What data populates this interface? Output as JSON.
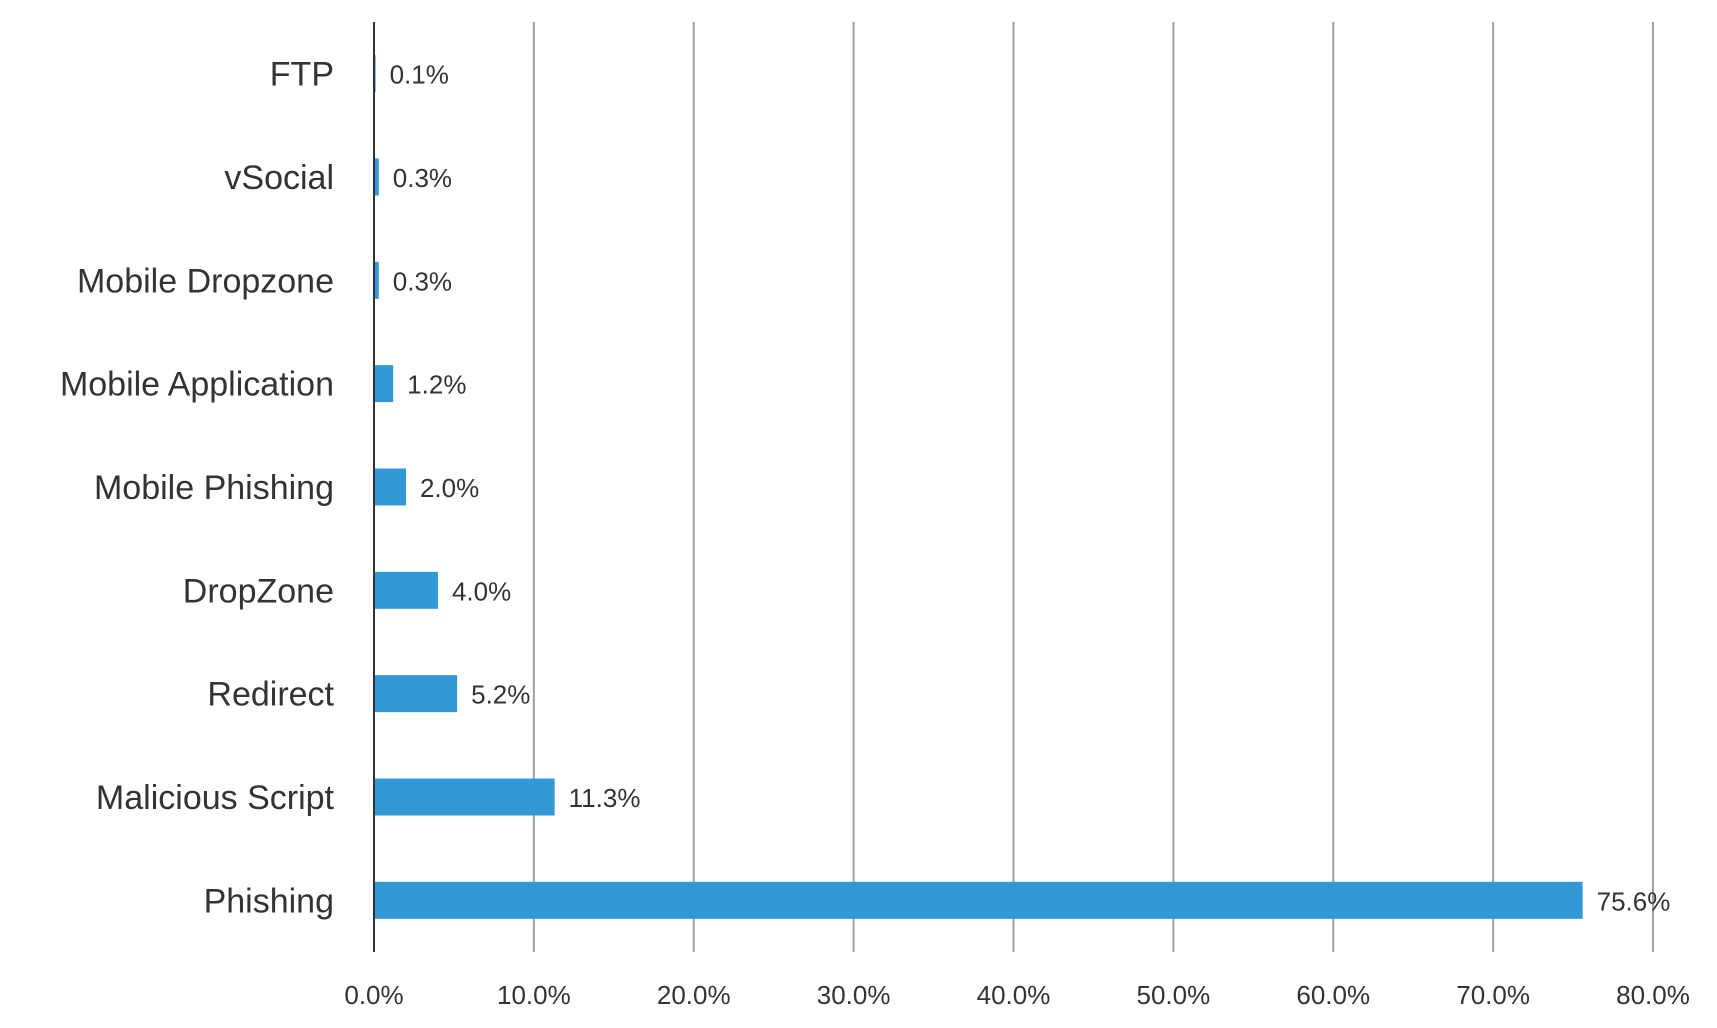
{
  "chart_data": {
    "type": "bar",
    "orientation": "horizontal",
    "title": "",
    "xlabel": "",
    "ylabel": "",
    "categories": [
      "FTP",
      "vSocial",
      "Mobile Dropzone",
      "Mobile Application",
      "Mobile Phishing",
      "DropZone",
      "Redirect",
      "Malicious Script",
      "Phishing"
    ],
    "values": [
      0.1,
      0.3,
      0.3,
      1.2,
      2.0,
      4.0,
      5.2,
      11.3,
      75.6
    ],
    "value_labels": [
      "0.1%",
      "0.3%",
      "0.3%",
      "1.2%",
      "2.0%",
      "4.0%",
      "5.2%",
      "11.3%",
      "75.6%"
    ],
    "xlim": [
      0,
      80
    ],
    "x_ticks": [
      0,
      10,
      20,
      30,
      40,
      50,
      60,
      70,
      80
    ],
    "x_tick_labels": [
      "0.0%",
      "10.0%",
      "20.0%",
      "30.0%",
      "40.0%",
      "50.0%",
      "60.0%",
      "70.0%",
      "80.0%"
    ],
    "grid": true,
    "legend": "none",
    "colors": {
      "bar": "#3399D6",
      "grid": "#A0A0A0",
      "axis": "#333333",
      "text": "#333333"
    }
  }
}
